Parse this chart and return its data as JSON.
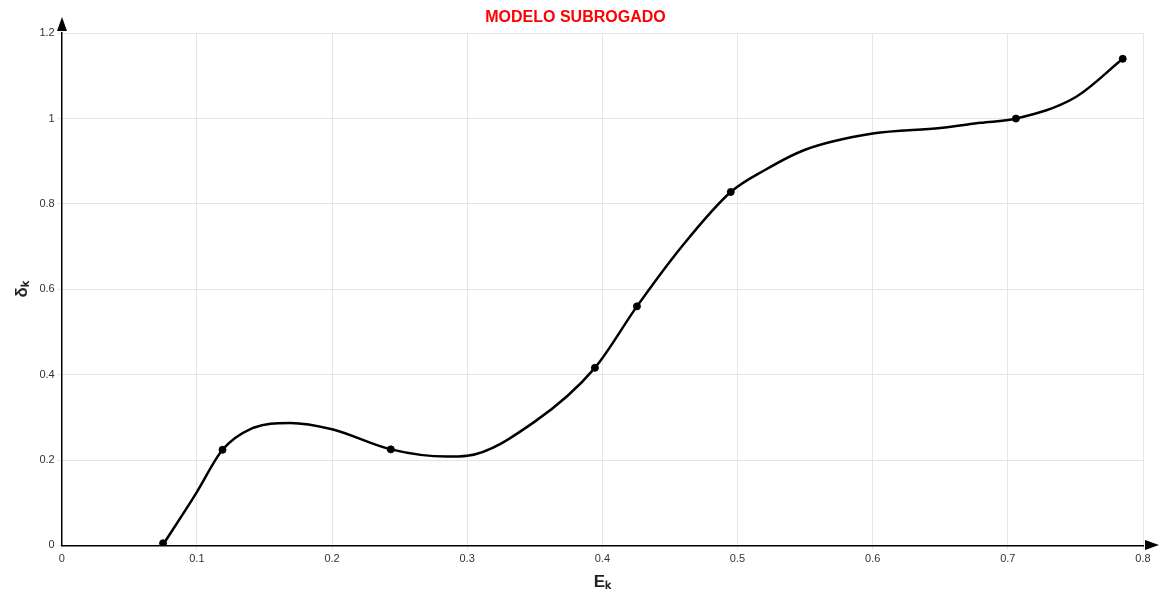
{
  "chart_data": {
    "type": "line",
    "title": "MODELO SUBROGADO",
    "xlabel": "Eₖ",
    "ylabel": "δₖ",
    "xlim": [
      0,
      0.8
    ],
    "xticks": [
      0,
      0.1,
      0.2,
      0.3,
      0.4,
      0.5,
      0.6,
      0.7,
      0.8
    ],
    "ylim": [
      0,
      1.2
    ],
    "yticks": [
      0,
      0.2,
      0.4,
      0.6,
      0.8,
      1,
      1.2
    ],
    "grid": true,
    "series": [
      {
        "type": "line",
        "color": "#000000",
        "marker": "none",
        "x": [
          0.075,
          0.09,
          0.1,
          0.119,
          0.14,
          0.169,
          0.2,
          0.2435,
          0.285,
          0.3,
          0.35,
          0.3945,
          0.4256,
          0.46,
          0.495,
          0.52,
          0.55,
          0.6,
          0.65,
          0.68,
          0.706,
          0.75,
          0.785
        ],
        "values": [
          0.002,
          0.075,
          0.125,
          0.224,
          0.273,
          0.287,
          0.272,
          0.225,
          0.208,
          0.21,
          0.29,
          0.416,
          0.56,
          0.705,
          0.828,
          0.879,
          0.927,
          0.965,
          0.978,
          0.99,
          1.0,
          1.05,
          1.14
        ]
      },
      {
        "type": "scatter",
        "color": "#000000",
        "marker": "circle",
        "x": [
          0.075,
          0.119,
          0.2435,
          0.3945,
          0.4256,
          0.495,
          0.706,
          0.785
        ],
        "values": [
          0.005,
          0.224,
          0.225,
          0.416,
          0.56,
          0.828,
          1.0,
          1.14
        ]
      }
    ]
  }
}
